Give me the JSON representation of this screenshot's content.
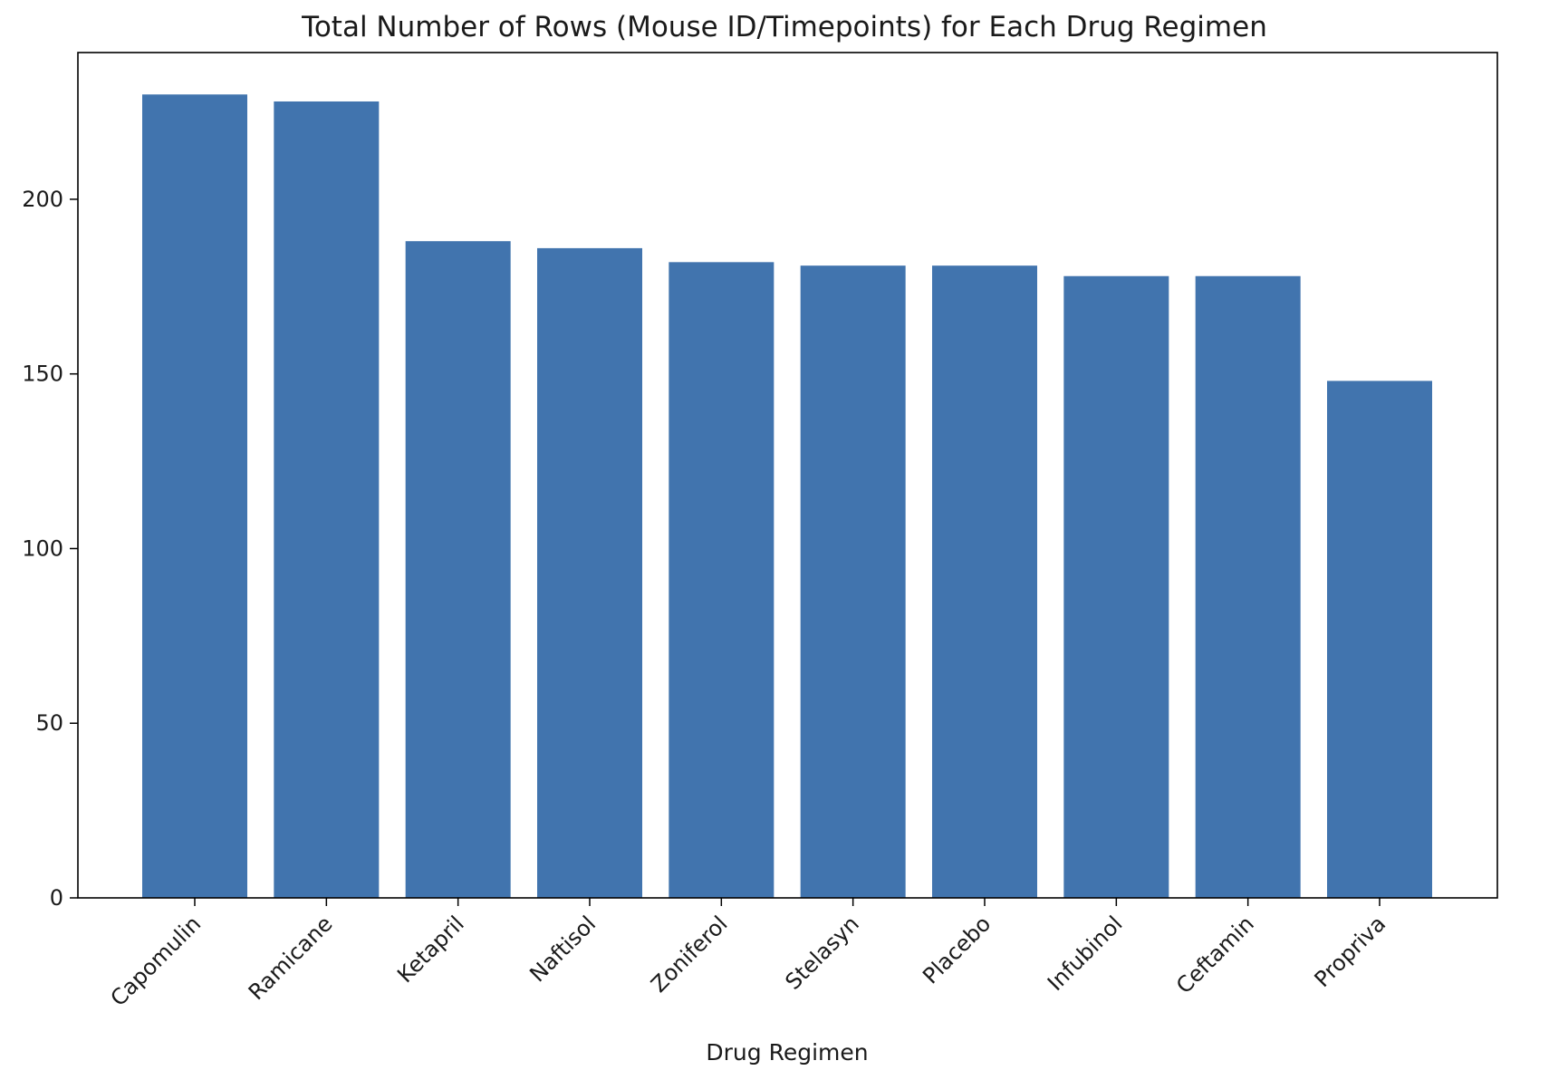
{
  "chart_data": {
    "type": "bar",
    "title": "Total Number of Rows (Mouse ID/Timepoints) for Each Drug Regimen",
    "xlabel": "Drug Regimen",
    "ylabel": "",
    "categories": [
      "Capomulin",
      "Ramicane",
      "Ketapril",
      "Naftisol",
      "Zoniferol",
      "Stelasyn",
      "Placebo",
      "Infubinol",
      "Ceftamin",
      "Propriva"
    ],
    "values": [
      230,
      228,
      188,
      186,
      182,
      181,
      181,
      178,
      178,
      148
    ],
    "ylim": [
      0,
      242
    ],
    "yticks": [
      0,
      50,
      100,
      150,
      200
    ],
    "grid": false,
    "bar_color": "#4174ae"
  }
}
